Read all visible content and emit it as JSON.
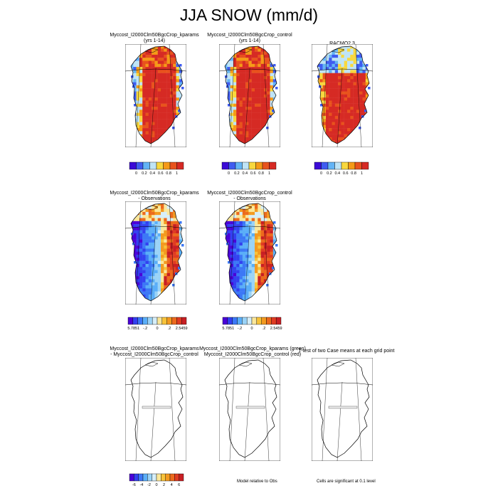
{
  "figure": {
    "title": "JJA SNOW (mm/d)"
  },
  "colors": {
    "abs_scale": [
      "#3b0bd6",
      "#3f5cf0",
      "#63b4f6",
      "#bfe4f6",
      "#f8d83e",
      "#f59a17",
      "#e8531d",
      "#d62a24"
    ],
    "diff_scale": [
      "#4a00d8",
      "#3340f0",
      "#3c78f6",
      "#5aaef8",
      "#9ad3f7",
      "#d6eef8",
      "#fbe79a",
      "#f8c33a",
      "#f39a20",
      "#ec6a1d",
      "#e03c22",
      "#c81f24"
    ],
    "outline": "#000000",
    "ocean": "#ffffff",
    "coast_cells": "#3f5cf0"
  },
  "chart_data": [
    {
      "type": "heatmap",
      "id": "kparams",
      "title_lines": [
        "Myccost_I2000Clm50BgcCrop_kparams",
        "(yrs 1-14)"
      ],
      "colorbar_labels": [
        "0",
        "0.2",
        "0.4",
        "0.6",
        "0.8",
        "1"
      ],
      "pattern": "abs"
    },
    {
      "type": "heatmap",
      "id": "control",
      "title_lines": [
        "Myccost_I2000Clm50BgcCrop_control",
        "(yrs 1-14)"
      ],
      "colorbar_labels": [
        "0",
        "0.2",
        "0.4",
        "0.6",
        "0.8",
        "1"
      ],
      "pattern": "abs"
    },
    {
      "type": "heatmap",
      "id": "racmo",
      "title_lines": [
        "RACMO2.3"
      ],
      "colorbar_labels": [
        "0",
        "0.2",
        "0.4",
        "0.6",
        "0.8",
        "1"
      ],
      "pattern": "racmo"
    },
    {
      "type": "heatmap",
      "id": "kparams-minus-obs",
      "title_lines": [
        "Myccost_I2000Clm50BgcCrop_kparams",
        "- Observations"
      ],
      "colorbar_labels": [
        "-5.7851",
        "-.2",
        "0",
        ".2",
        "2.5459"
      ],
      "pattern": "diff"
    },
    {
      "type": "heatmap",
      "id": "control-minus-obs",
      "title_lines": [
        "Myccost_I2000Clm50BgcCrop_control",
        "- Observations"
      ],
      "colorbar_labels": [
        "-5.7851",
        "-.2",
        "0",
        ".2",
        "2.5459"
      ],
      "pattern": "diff"
    },
    {
      "type": "heatmap",
      "id": "kparams-minus-control",
      "title_lines": [
        "Myccost_I2000Clm50BgcCrop_kparams",
        "- Myccost_I2000Clm50BgcCrop_control"
      ],
      "colorbar_labels": [
        "-6",
        "-4",
        "-2",
        "0",
        "2",
        "4",
        "6"
      ],
      "pattern": "empty"
    },
    {
      "type": "heatmap",
      "id": "model-relative-to-obs",
      "title_lines": [
        "Myccost_I2000Clm50BgcCrop_kparams (green)",
        "Myccost_I2000Clm50BgcCrop_control (red)"
      ],
      "note": "Model relative to Obs",
      "pattern": "empty"
    },
    {
      "type": "heatmap",
      "id": "t-test",
      "title_lines": [
        "T-test of two Case means at each grid point"
      ],
      "note": "Cells are significant at 0.1 level",
      "pattern": "empty"
    }
  ]
}
